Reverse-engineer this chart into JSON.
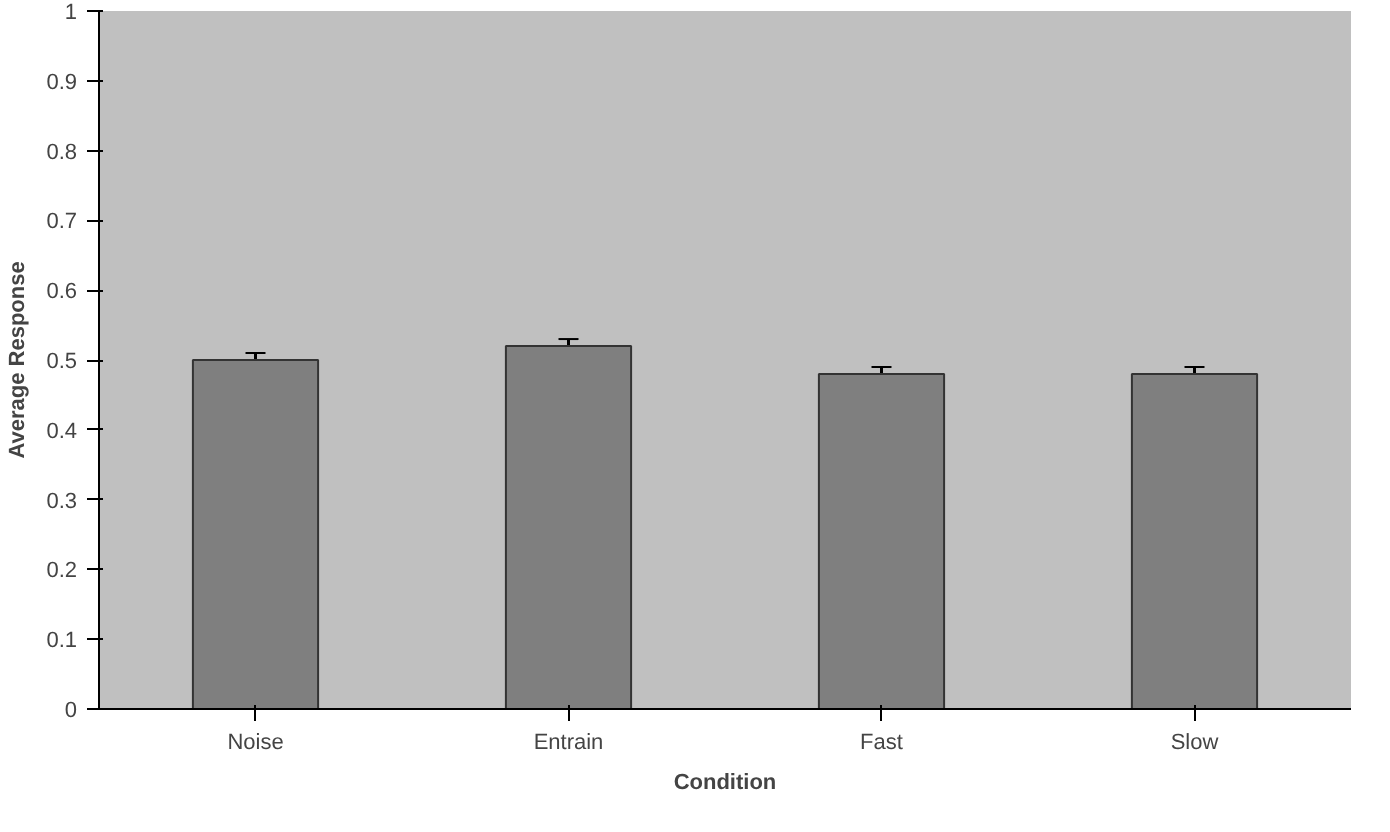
{
  "chart_data": {
    "type": "bar",
    "xlabel": "Condition",
    "ylabel": "Average Response",
    "categories": [
      "Noise",
      "Entrain",
      "Fast",
      "Slow"
    ],
    "values": [
      0.5,
      0.52,
      0.48,
      0.48
    ],
    "errors": [
      0.01,
      0.01,
      0.01,
      0.01
    ],
    "color": "#7f7f7f",
    "ylim": [
      0,
      1
    ],
    "yticks": [
      0,
      0.1,
      0.2,
      0.3,
      0.4,
      0.5,
      0.6,
      0.7,
      0.8,
      0.9,
      1
    ],
    "grid": false
  }
}
